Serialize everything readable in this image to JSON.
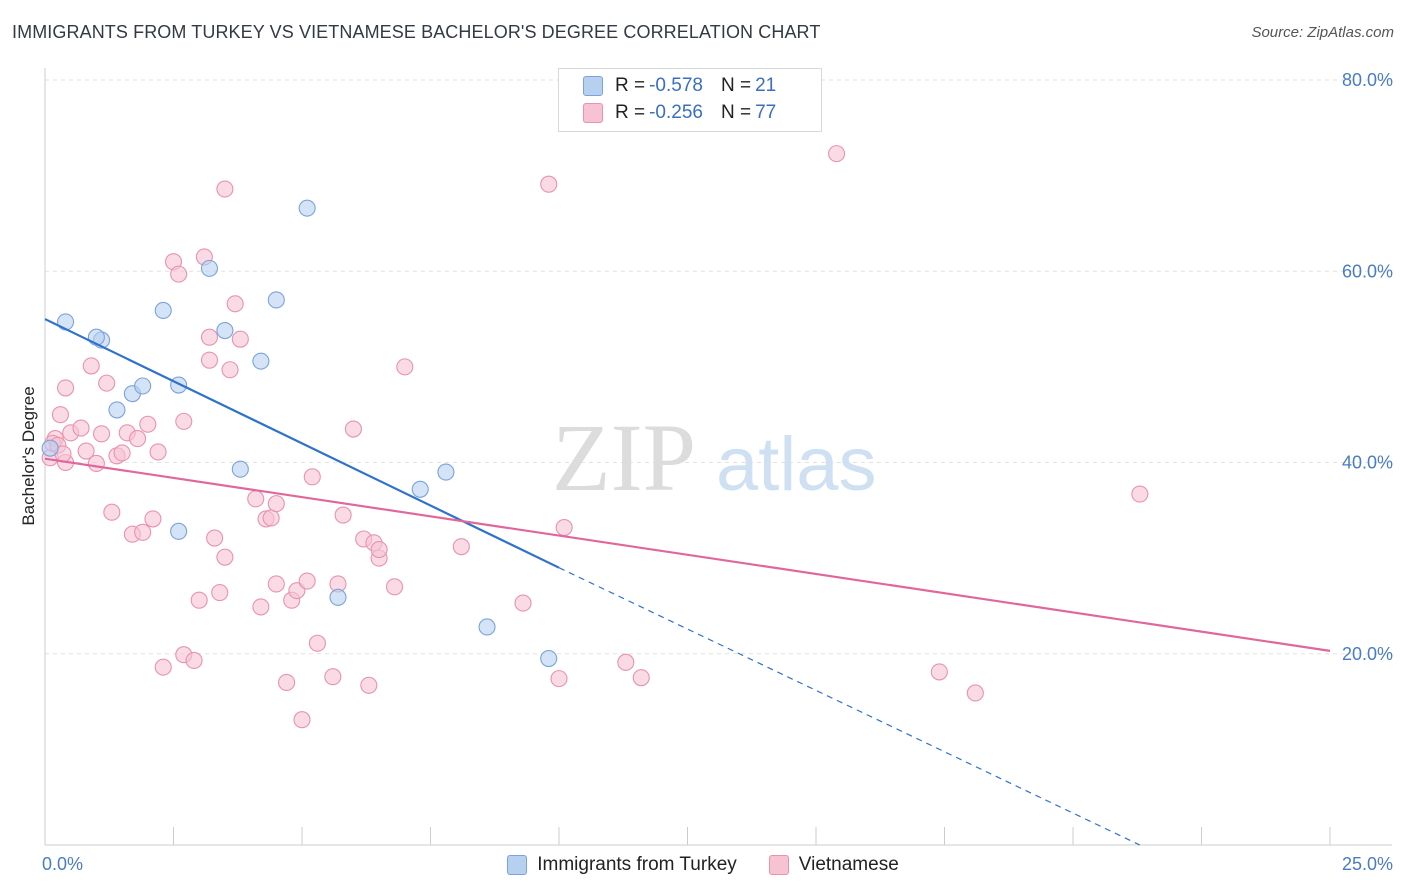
{
  "title": "IMMIGRANTS FROM TURKEY VS VIETNAMESE BACHELOR'S DEGREE CORRELATION CHART",
  "source": "Source: ZipAtlas.com",
  "watermark": {
    "zip": "ZIP",
    "atlas": "atlas"
  },
  "colors": {
    "blue_fill": "#b8d0f0",
    "blue_stroke": "#7aa3db",
    "blue_line": "#2e72cc",
    "pink_fill": "#f7c3d3",
    "pink_stroke": "#e893ae",
    "pink_line": "#e0679a",
    "tick_label": "#4a7cc4"
  },
  "legend": {
    "rows": [
      {
        "r_label": "R = ",
        "r_value": "-0.578",
        "n_label": "N = ",
        "n_value": "21",
        "series": "blue"
      },
      {
        "r_label": "R = ",
        "r_value": "-0.256",
        "n_label": "N = ",
        "n_value": "77",
        "series": "pink"
      }
    ]
  },
  "bottom_legend": [
    "Immigrants from Turkey",
    "Vietnamese"
  ],
  "chart_data": {
    "type": "scatter",
    "title": "IMMIGRANTS FROM TURKEY VS VIETNAMESE BACHELOR'S DEGREE CORRELATION CHART",
    "xlabel": "",
    "ylabel": "Bachelor's Degree",
    "xlim": [
      0,
      25
    ],
    "ylim": [
      0,
      80
    ],
    "x_tick_labels": [
      {
        "value": 0,
        "label": "0.0%"
      },
      {
        "value": 25,
        "label": "25.0%"
      }
    ],
    "y_tick_labels": [
      {
        "value": 20,
        "label": "20.0%"
      },
      {
        "value": 40,
        "label": "40.0%"
      },
      {
        "value": 60,
        "label": "60.0%"
      },
      {
        "value": 80,
        "label": "80.0%"
      }
    ],
    "grid": true,
    "legend_position": "top-center",
    "series": [
      {
        "name": "Immigrants from Turkey",
        "color": "blue",
        "points": [
          [
            0.1,
            41.5
          ],
          [
            0.4,
            54.7
          ],
          [
            1.1,
            52.8
          ],
          [
            1.0,
            53.1
          ],
          [
            1.4,
            45.5
          ],
          [
            1.7,
            47.2
          ],
          [
            1.9,
            48.0
          ],
          [
            2.3,
            55.9
          ],
          [
            2.6,
            48.1
          ],
          [
            2.6,
            32.8
          ],
          [
            3.2,
            60.3
          ],
          [
            3.5,
            53.8
          ],
          [
            4.2,
            50.6
          ],
          [
            3.8,
            39.3
          ],
          [
            4.5,
            57.0
          ],
          [
            5.1,
            66.6
          ],
          [
            5.7,
            25.9
          ],
          [
            7.3,
            37.2
          ],
          [
            7.8,
            39.0
          ],
          [
            8.6,
            22.8
          ],
          [
            9.8,
            19.5
          ]
        ],
        "trend": {
          "x0": 0,
          "y0": 55.0,
          "x1": 10.0,
          "y1": 29.0,
          "dash_to_x": 21.3,
          "dash_to_y": 0
        }
      },
      {
        "name": "Vietnamese",
        "color": "pink",
        "points": [
          [
            0.1,
            40.5
          ],
          [
            0.2,
            42.5
          ],
          [
            0.3,
            45.0
          ],
          [
            0.4,
            47.8
          ],
          [
            0.4,
            40.0
          ],
          [
            0.5,
            43.1
          ],
          [
            0.7,
            43.6
          ],
          [
            0.8,
            41.2
          ],
          [
            0.9,
            50.1
          ],
          [
            1.0,
            39.9
          ],
          [
            1.1,
            43.0
          ],
          [
            1.2,
            48.3
          ],
          [
            1.3,
            34.8
          ],
          [
            1.4,
            40.7
          ],
          [
            1.5,
            41.0
          ],
          [
            1.6,
            43.1
          ],
          [
            1.7,
            32.5
          ],
          [
            1.8,
            42.5
          ],
          [
            1.9,
            32.7
          ],
          [
            2.0,
            44.0
          ],
          [
            2.1,
            34.1
          ],
          [
            2.2,
            41.1
          ],
          [
            2.3,
            18.6
          ],
          [
            2.5,
            61.0
          ],
          [
            2.6,
            59.7
          ],
          [
            2.7,
            44.3
          ],
          [
            2.7,
            19.9
          ],
          [
            2.9,
            19.3
          ],
          [
            3.0,
            25.6
          ],
          [
            3.1,
            61.5
          ],
          [
            3.2,
            53.1
          ],
          [
            3.2,
            50.7
          ],
          [
            3.3,
            32.1
          ],
          [
            3.4,
            26.4
          ],
          [
            3.5,
            30.1
          ],
          [
            3.5,
            68.6
          ],
          [
            3.6,
            49.7
          ],
          [
            3.7,
            56.6
          ],
          [
            3.8,
            52.9
          ],
          [
            4.1,
            36.2
          ],
          [
            4.2,
            24.9
          ],
          [
            4.3,
            34.1
          ],
          [
            4.4,
            34.2
          ],
          [
            4.5,
            27.3
          ],
          [
            4.5,
            35.7
          ],
          [
            4.7,
            17.0
          ],
          [
            4.8,
            25.6
          ],
          [
            4.9,
            26.6
          ],
          [
            5.0,
            13.1
          ],
          [
            5.1,
            27.6
          ],
          [
            5.2,
            38.5
          ],
          [
            5.3,
            21.1
          ],
          [
            5.6,
            17.6
          ],
          [
            5.7,
            27.3
          ],
          [
            5.8,
            34.5
          ],
          [
            6.0,
            43.5
          ],
          [
            6.2,
            32.0
          ],
          [
            6.3,
            16.7
          ],
          [
            6.4,
            31.6
          ],
          [
            6.5,
            30.0
          ],
          [
            6.5,
            30.9
          ],
          [
            6.8,
            27.0
          ],
          [
            7.0,
            50.0
          ],
          [
            8.1,
            31.2
          ],
          [
            9.3,
            25.3
          ],
          [
            9.8,
            69.1
          ],
          [
            10.0,
            17.4
          ],
          [
            10.1,
            33.2
          ],
          [
            11.3,
            19.1
          ],
          [
            11.6,
            17.5
          ],
          [
            15.4,
            72.3
          ],
          [
            17.4,
            18.1
          ],
          [
            18.1,
            15.9
          ],
          [
            21.3,
            36.7
          ],
          [
            0.15,
            42.0
          ],
          [
            0.25,
            41.8
          ],
          [
            0.35,
            40.9
          ]
        ],
        "trend": {
          "x0": 0,
          "y0": 40.4,
          "x1": 25.0,
          "y1": 20.3
        }
      }
    ]
  }
}
